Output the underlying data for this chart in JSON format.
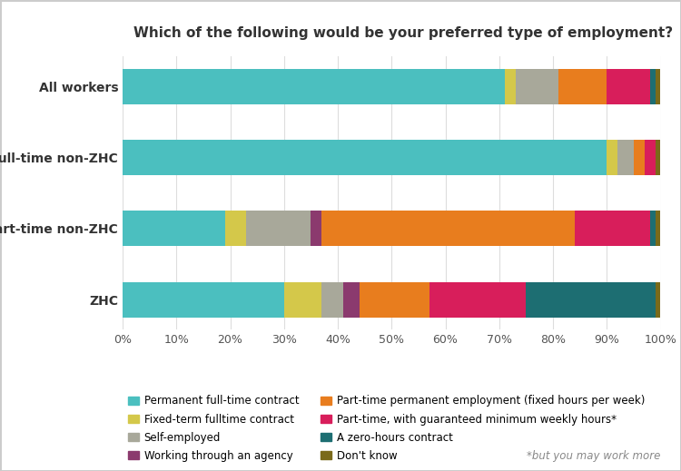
{
  "title": "Which of the following would be your preferred type of employment?",
  "categories": [
    "ZHC",
    "Part-time non-ZHC",
    "Full-time non-ZHC",
    "All workers"
  ],
  "series": [
    {
      "name": "Permanent full-time contract",
      "color": "#4BBFBF",
      "values": [
        30,
        19,
        90,
        71
      ]
    },
    {
      "name": "Fixed-term fulltime contract",
      "color": "#D4C84A",
      "values": [
        7,
        4,
        2,
        2
      ]
    },
    {
      "name": "Self-employed",
      "color": "#A8A89A",
      "values": [
        4,
        12,
        3,
        8
      ]
    },
    {
      "name": "Working through an agency",
      "color": "#8B3A6E",
      "values": [
        3,
        2,
        0,
        0
      ]
    },
    {
      "name": "Part-time permanent employment (fixed hours per week)",
      "color": "#E87D1E",
      "values": [
        13,
        47,
        2,
        9
      ]
    },
    {
      "name": "Part-time, with guaranteed minimum weekly hours*",
      "color": "#D81E5B",
      "values": [
        18,
        14,
        2,
        8
      ]
    },
    {
      "name": "A zero-hours contract",
      "color": "#1D6E72",
      "values": [
        24,
        1,
        0,
        1
      ]
    },
    {
      "name": "Don't know",
      "color": "#7A6A1A",
      "values": [
        1,
        1,
        1,
        1
      ]
    }
  ],
  "footnote": "*but you may work more",
  "background_color": "#FFFFFF",
  "border_color": "#CCCCCC",
  "title_fontsize": 11,
  "legend_fontsize": 8.5,
  "tick_fontsize": 9
}
